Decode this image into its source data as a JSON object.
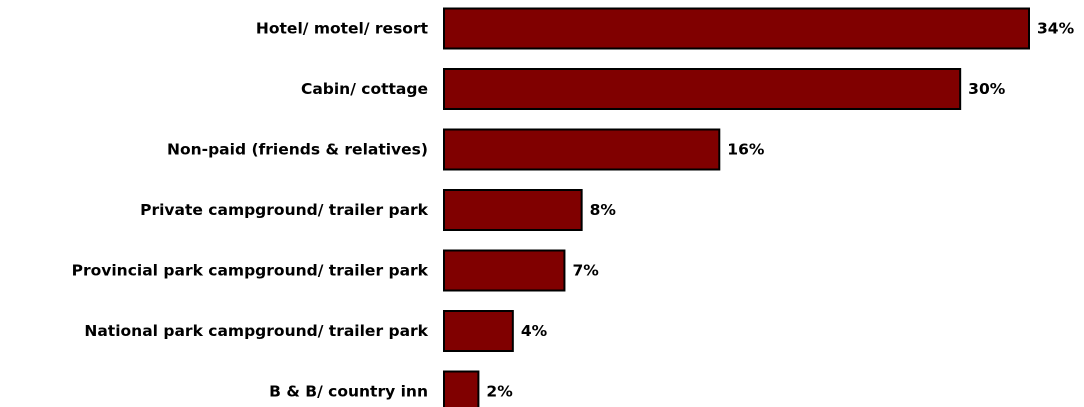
{
  "chart_data": {
    "type": "bar",
    "orientation": "horizontal",
    "title": "",
    "xlabel": "",
    "ylabel": "",
    "categories": [
      "Hotel/ motel/ resort",
      "Cabin/ cottage",
      "Non-paid (friends & relatives)",
      "Private campground/ trailer park",
      "Provincial park campground/ trailer park",
      "National park campground/ trailer park",
      "B & B/ country inn"
    ],
    "values": [
      34,
      30,
      16,
      8,
      7,
      4,
      2
    ],
    "value_labels": [
      "34%",
      "30%",
      "16%",
      "8%",
      "7%",
      "4%",
      "2%"
    ],
    "unit": "%",
    "xlim": [
      0,
      34
    ],
    "grid": false,
    "legend": "none",
    "colors": {
      "bar_fill": "#800000",
      "bar_stroke": "#000000"
    }
  }
}
